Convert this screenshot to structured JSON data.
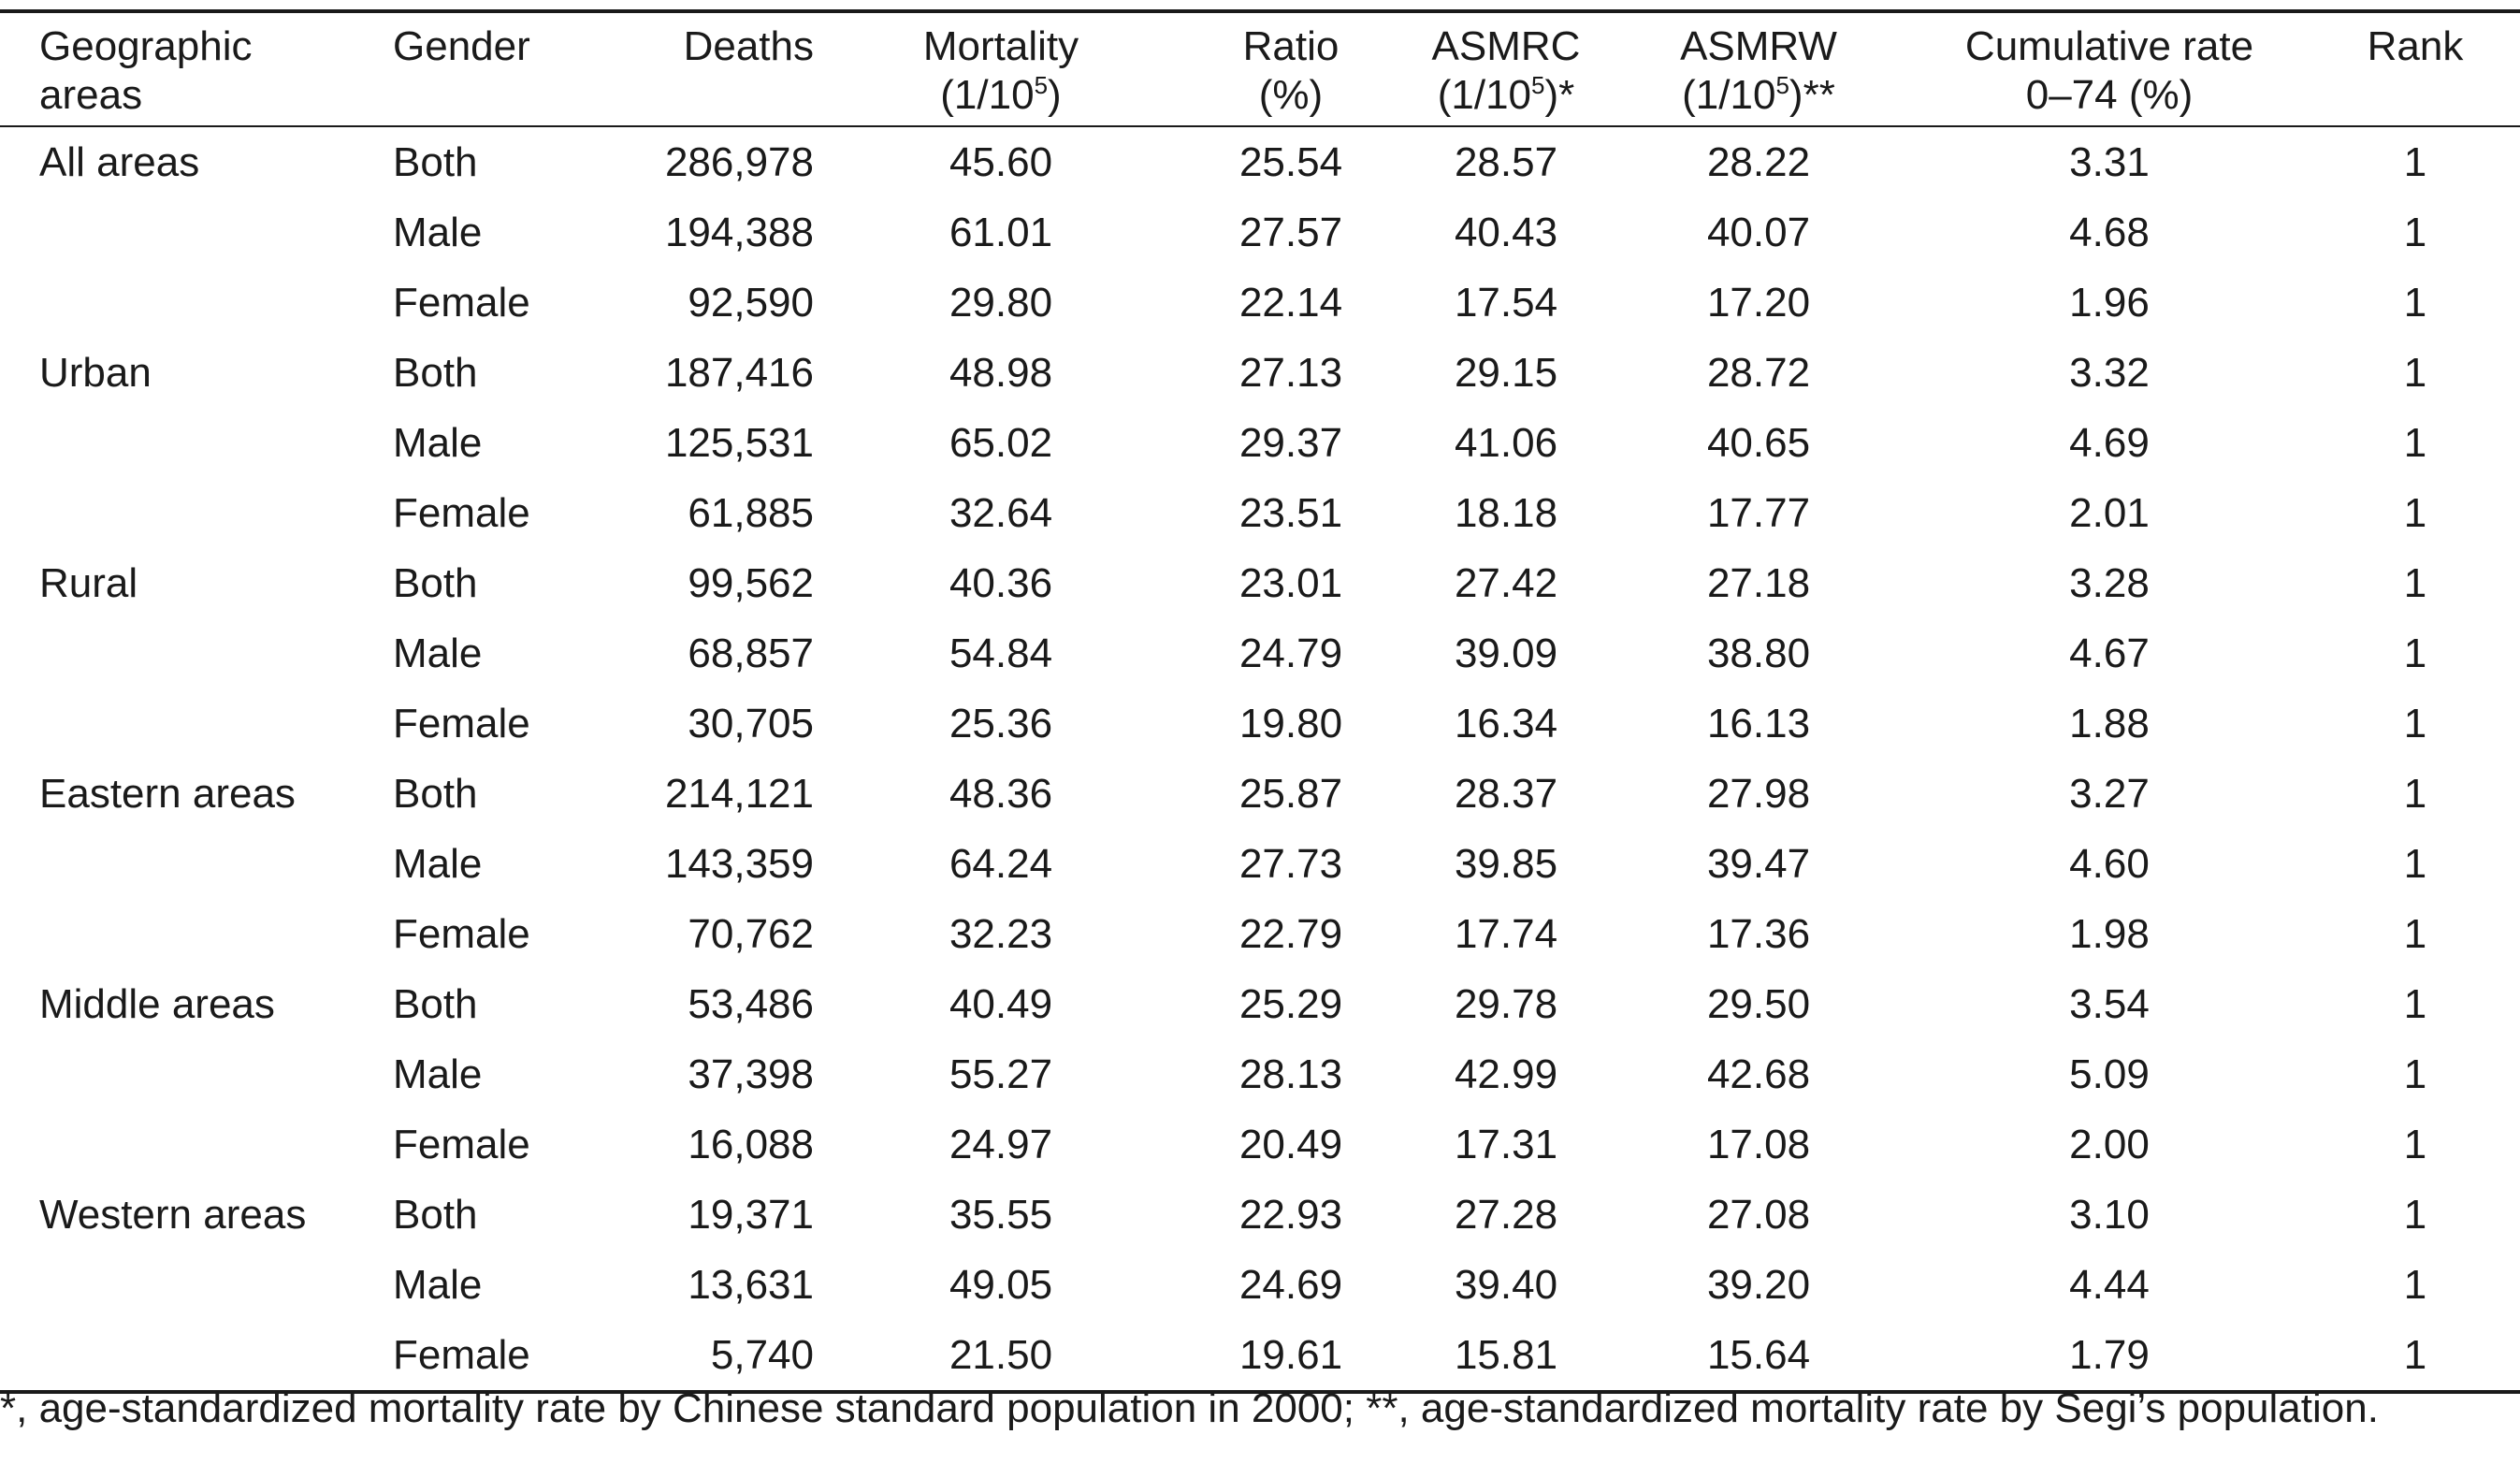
{
  "headers": {
    "area": [
      "Geographic",
      "areas"
    ],
    "gender": "Gender",
    "deaths": "Deaths",
    "mortality": [
      "Mortality",
      "(1/10",
      "5",
      ")"
    ],
    "ratio": [
      "Ratio",
      "(%)"
    ],
    "asmrc": [
      "ASMRC",
      "(1/10",
      "5",
      ")*"
    ],
    "asmrw": [
      "ASMRW",
      "(1/10",
      "5",
      ")**"
    ],
    "cumulative": [
      "Cumulative rate",
      "0–74 (%)"
    ],
    "rank": "Rank"
  },
  "rows": [
    {
      "area": "All areas",
      "gender": "Both",
      "deaths": "286,978",
      "mortality": "45.60",
      "ratio": "25.54",
      "asmrc": "28.57",
      "asmrw": "28.22",
      "cumulative": "3.31",
      "rank": "1"
    },
    {
      "area": "",
      "gender": "Male",
      "deaths": "194,388",
      "mortality": "61.01",
      "ratio": "27.57",
      "asmrc": "40.43",
      "asmrw": "40.07",
      "cumulative": "4.68",
      "rank": "1"
    },
    {
      "area": "",
      "gender": "Female",
      "deaths": "92,590",
      "mortality": "29.80",
      "ratio": "22.14",
      "asmrc": "17.54",
      "asmrw": "17.20",
      "cumulative": "1.96",
      "rank": "1"
    },
    {
      "area": "Urban",
      "gender": "Both",
      "deaths": "187,416",
      "mortality": "48.98",
      "ratio": "27.13",
      "asmrc": "29.15",
      "asmrw": "28.72",
      "cumulative": "3.32",
      "rank": "1"
    },
    {
      "area": "",
      "gender": "Male",
      "deaths": "125,531",
      "mortality": "65.02",
      "ratio": "29.37",
      "asmrc": "41.06",
      "asmrw": "40.65",
      "cumulative": "4.69",
      "rank": "1"
    },
    {
      "area": "",
      "gender": "Female",
      "deaths": "61,885",
      "mortality": "32.64",
      "ratio": "23.51",
      "asmrc": "18.18",
      "asmrw": "17.77",
      "cumulative": "2.01",
      "rank": "1"
    },
    {
      "area": "Rural",
      "gender": "Both",
      "deaths": "99,562",
      "mortality": "40.36",
      "ratio": "23.01",
      "asmrc": "27.42",
      "asmrw": "27.18",
      "cumulative": "3.28",
      "rank": "1"
    },
    {
      "area": "",
      "gender": "Male",
      "deaths": "68,857",
      "mortality": "54.84",
      "ratio": "24.79",
      "asmrc": "39.09",
      "asmrw": "38.80",
      "cumulative": "4.67",
      "rank": "1"
    },
    {
      "area": "",
      "gender": "Female",
      "deaths": "30,705",
      "mortality": "25.36",
      "ratio": "19.80",
      "asmrc": "16.34",
      "asmrw": "16.13",
      "cumulative": "1.88",
      "rank": "1"
    },
    {
      "area": "Eastern areas",
      "gender": "Both",
      "deaths": "214,121",
      "mortality": "48.36",
      "ratio": "25.87",
      "asmrc": "28.37",
      "asmrw": "27.98",
      "cumulative": "3.27",
      "rank": "1"
    },
    {
      "area": "",
      "gender": "Male",
      "deaths": "143,359",
      "mortality": "64.24",
      "ratio": "27.73",
      "asmrc": "39.85",
      "asmrw": "39.47",
      "cumulative": "4.60",
      "rank": "1"
    },
    {
      "area": "",
      "gender": "Female",
      "deaths": "70,762",
      "mortality": "32.23",
      "ratio": "22.79",
      "asmrc": "17.74",
      "asmrw": "17.36",
      "cumulative": "1.98",
      "rank": "1"
    },
    {
      "area": "Middle areas",
      "gender": "Both",
      "deaths": "53,486",
      "mortality": "40.49",
      "ratio": "25.29",
      "asmrc": "29.78",
      "asmrw": "29.50",
      "cumulative": "3.54",
      "rank": "1"
    },
    {
      "area": "",
      "gender": "Male",
      "deaths": "37,398",
      "mortality": "55.27",
      "ratio": "28.13",
      "asmrc": "42.99",
      "asmrw": "42.68",
      "cumulative": "5.09",
      "rank": "1"
    },
    {
      "area": "",
      "gender": "Female",
      "deaths": "16,088",
      "mortality": "24.97",
      "ratio": "20.49",
      "asmrc": "17.31",
      "asmrw": "17.08",
      "cumulative": "2.00",
      "rank": "1"
    },
    {
      "area": "Western areas",
      "gender": "Both",
      "deaths": "19,371",
      "mortality": "35.55",
      "ratio": "22.93",
      "asmrc": "27.28",
      "asmrw": "27.08",
      "cumulative": "3.10",
      "rank": "1"
    },
    {
      "area": "",
      "gender": "Male",
      "deaths": "13,631",
      "mortality": "49.05",
      "ratio": "24.69",
      "asmrc": "39.40",
      "asmrw": "39.20",
      "cumulative": "4.44",
      "rank": "1"
    },
    {
      "area": "",
      "gender": "Female",
      "deaths": "5,740",
      "mortality": "21.50",
      "ratio": "19.61",
      "asmrc": "15.81",
      "asmrw": "15.64",
      "cumulative": "1.79",
      "rank": "1"
    }
  ],
  "footnote": "*, age-standardized mortality rate by Chinese standard population in 2000; **, age-standardized mortality rate by Segi’s population."
}
